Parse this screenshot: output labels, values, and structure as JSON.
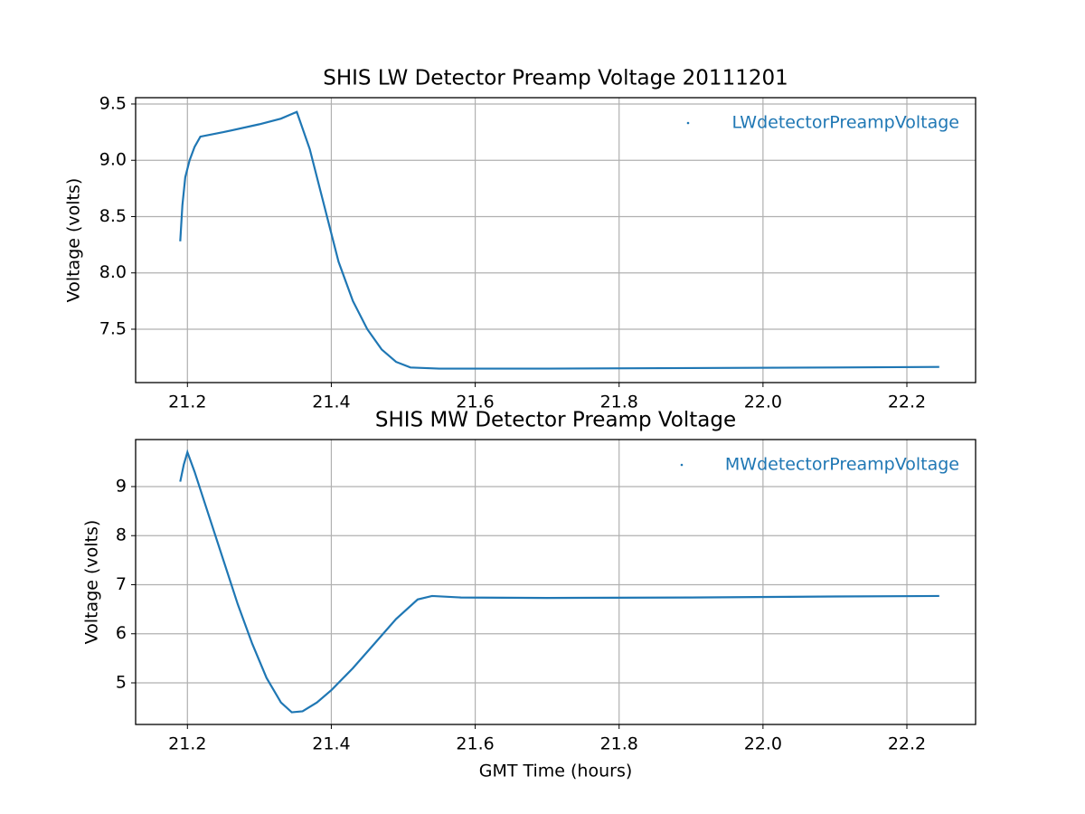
{
  "chart_data": [
    {
      "type": "line",
      "title": "SHIS LW Detector Preamp Voltage 20111201",
      "ylabel": "Voltage (volts)",
      "xlim": [
        21.128,
        22.2955
      ],
      "ylim": [
        7.026,
        9.556
      ],
      "xticks": [
        21.2,
        21.4,
        21.6,
        21.8,
        {
          "value": 22,
          "label": "22.0"
        },
        22.2
      ],
      "yticks": [
        7.5,
        {
          "value": 8,
          "label": "8.0"
        },
        8.5,
        {
          "value": 9,
          "label": "9.0"
        },
        9.5
      ],
      "grid": true,
      "legend": "upper right",
      "series": [
        {
          "name": "LWdetectorPreampVoltage",
          "color": "#1f77b4",
          "x": [
            21.19,
            21.193,
            21.197,
            21.203,
            21.21,
            21.218,
            21.25,
            21.3,
            21.33,
            21.352,
            21.37,
            21.39,
            21.41,
            21.43,
            21.45,
            21.47,
            21.49,
            21.51,
            21.55,
            21.7,
            21.9,
            22.1,
            22.245
          ],
          "values": [
            8.28,
            8.6,
            8.85,
            9.0,
            9.12,
            9.21,
            9.25,
            9.32,
            9.37,
            9.43,
            9.1,
            8.6,
            8.1,
            7.75,
            7.5,
            7.32,
            7.21,
            7.16,
            7.15,
            7.15,
            7.155,
            7.16,
            7.165
          ]
        }
      ]
    },
    {
      "type": "line",
      "title": "SHIS MW Detector Preamp Voltage",
      "ylabel": "Voltage (volts)",
      "xlabel": "GMT Time (hours)",
      "xlim": [
        21.128,
        22.2955
      ],
      "ylim": [
        4.152,
        9.958
      ],
      "xticks": [
        21.2,
        21.4,
        21.6,
        21.8,
        {
          "value": 22,
          "label": "22.0"
        },
        22.2
      ],
      "yticks": [
        5,
        6,
        7,
        8,
        9
      ],
      "grid": true,
      "legend": "upper right",
      "series": [
        {
          "name": "MWdetectorPreampVoltage",
          "color": "#1f77b4",
          "x": [
            21.19,
            21.195,
            21.2,
            21.21,
            21.23,
            21.25,
            21.27,
            21.29,
            21.31,
            21.33,
            21.345,
            21.36,
            21.38,
            21.4,
            21.43,
            21.46,
            21.49,
            21.52,
            21.54,
            21.58,
            21.7,
            21.9,
            22.1,
            22.245
          ],
          "values": [
            9.1,
            9.45,
            9.7,
            9.3,
            8.4,
            7.5,
            6.6,
            5.8,
            5.1,
            4.6,
            4.4,
            4.42,
            4.6,
            4.85,
            5.3,
            5.8,
            6.3,
            6.7,
            6.77,
            6.74,
            6.73,
            6.74,
            6.76,
            6.77
          ]
        }
      ]
    }
  ]
}
